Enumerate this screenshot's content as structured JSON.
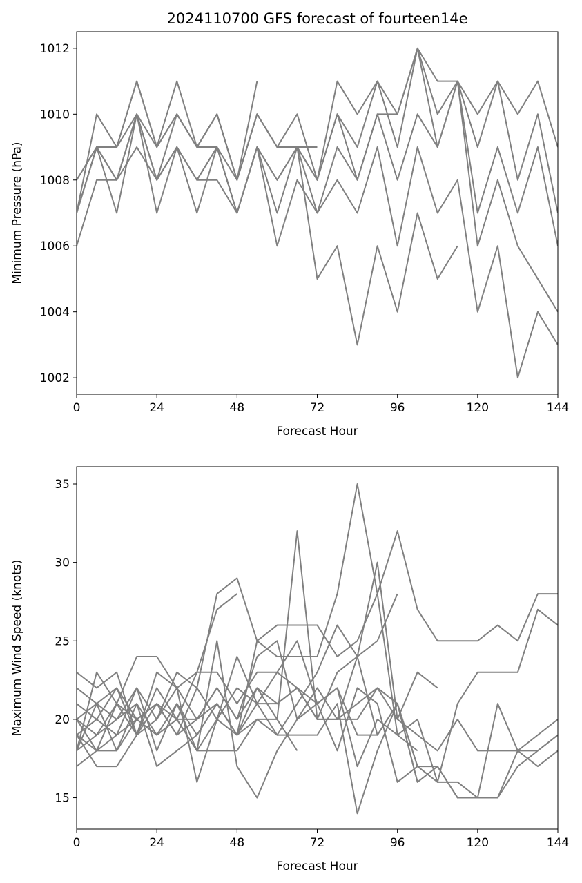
{
  "figure_title": "2024110700 GFS forecast of fourteen14e",
  "line_color": "#808080",
  "chart_data": [
    {
      "type": "line",
      "title": "2024110700 GFS forecast of fourteen14e",
      "xlabel": "Forecast Hour",
      "ylabel": "Minimum Pressure (hPa)",
      "xlim": [
        0,
        144
      ],
      "ylim": [
        1001.5,
        1012.5
      ],
      "xticks": [
        0,
        24,
        48,
        72,
        96,
        120,
        144
      ],
      "yticks": [
        1002,
        1004,
        1006,
        1008,
        1010,
        1012
      ],
      "grid": false,
      "legend": "none",
      "series": [
        {
          "x": [
            0,
            6,
            12,
            18,
            24,
            30,
            36,
            42,
            48,
            54,
            60,
            66,
            72,
            78,
            84,
            90,
            96,
            102,
            108,
            114,
            120,
            126,
            132,
            138,
            144
          ],
          "values": [
            1007,
            1009,
            1009,
            1011,
            1009,
            1011,
            1009,
            1009,
            1008,
            1010,
            1009,
            1009,
            1008,
            1011,
            1010,
            1011,
            1010,
            1012,
            1011,
            1011,
            1010,
            1011,
            1010,
            1011,
            1009
          ]
        },
        {
          "x": [
            0,
            6,
            12,
            18,
            24,
            30,
            36,
            42,
            48,
            54,
            60,
            66,
            72,
            78,
            84,
            90,
            96,
            102,
            108,
            114,
            120,
            126,
            132,
            138,
            144
          ],
          "values": [
            1008,
            1009,
            1009,
            1010,
            1008,
            1010,
            1009,
            1010,
            1008,
            1010,
            1009,
            1010,
            1008,
            1010,
            1009,
            1011,
            1009,
            1012,
            1010,
            1011,
            1009,
            1011,
            1008,
            1010,
            1007
          ]
        },
        {
          "x": [
            0,
            6,
            12,
            18,
            24,
            30,
            36,
            42,
            48,
            54,
            60,
            66,
            72,
            78,
            84,
            90,
            96,
            102,
            108,
            114,
            120,
            126,
            132,
            138,
            144
          ],
          "values": [
            1007,
            1009,
            1008,
            1010,
            1008,
            1009,
            1008,
            1009,
            1007,
            1009,
            1008,
            1009,
            1008,
            1010,
            1008,
            1010,
            1010,
            1012,
            1009,
            1011,
            1007,
            1009,
            1007,
            1009,
            1006
          ]
        },
        {
          "x": [
            0,
            6,
            12,
            18,
            24,
            30,
            36,
            42,
            48,
            54,
            60,
            66,
            72,
            78,
            84,
            90,
            96,
            102,
            108,
            114,
            120,
            126,
            132,
            138,
            144
          ],
          "values": [
            1007,
            1009,
            1008,
            1010,
            1008,
            1009,
            1008,
            1009,
            1007,
            1009,
            1008,
            1009,
            1007,
            1009,
            1008,
            1010,
            1008,
            1010,
            1009,
            1011,
            1006,
            1008,
            1006,
            1005,
            1004
          ]
        },
        {
          "x": [
            0,
            6,
            12,
            18,
            24,
            30,
            36,
            42,
            48,
            54,
            60,
            66,
            72,
            78,
            84,
            90,
            96,
            102,
            108,
            114,
            120,
            126,
            132,
            138,
            144
          ],
          "values": [
            1007,
            1009,
            1007,
            1010,
            1007,
            1009,
            1007,
            1009,
            1007,
            1009,
            1006,
            1008,
            1007,
            1008,
            1007,
            1009,
            1006,
            1009,
            1007,
            1008,
            1004,
            1006,
            1002,
            1004,
            1003
          ]
        },
        {
          "x": [
            0,
            6,
            12,
            18,
            24,
            30,
            36,
            42,
            48,
            54,
            60,
            66,
            72,
            78,
            84,
            90,
            96,
            102,
            108,
            114
          ],
          "values": [
            1006,
            1008,
            1008,
            1009,
            1008,
            1009,
            1008,
            1008,
            1007,
            1009,
            1007,
            1009,
            1005,
            1006,
            1003,
            1006,
            1004,
            1007,
            1005,
            1006
          ]
        },
        {
          "x": [
            0,
            6,
            12,
            18,
            24,
            30,
            36,
            42,
            48,
            54
          ],
          "values": [
            1007,
            1010,
            1009,
            1011,
            1009,
            1010,
            1009,
            1010,
            1008,
            1011
          ]
        },
        {
          "x": [
            0,
            6,
            12,
            18,
            24,
            30,
            36,
            42,
            48,
            54,
            60,
            66,
            72
          ],
          "values": [
            1008,
            1009,
            1008,
            1010,
            1009,
            1010,
            1009,
            1010,
            1008,
            1010,
            1009,
            1009,
            1009
          ]
        }
      ]
    },
    {
      "type": "line",
      "title": "",
      "xlabel": "Forecast Hour",
      "ylabel": "Maximum Wind Speed (knots)",
      "xlim": [
        0,
        144
      ],
      "ylim": [
        13,
        36.1
      ],
      "xticks": [
        0,
        24,
        48,
        72,
        96,
        120,
        144
      ],
      "yticks": [
        15,
        20,
        25,
        30,
        35
      ],
      "grid": false,
      "legend": "none",
      "series": [
        {
          "x": [
            0,
            6,
            12,
            18,
            24,
            30,
            36,
            42,
            48,
            54,
            60,
            66,
            72,
            78,
            84,
            90,
            96,
            102,
            108,
            114,
            120,
            126,
            132,
            138,
            144
          ],
          "values": [
            18,
            19,
            20,
            22,
            20,
            23,
            22,
            28,
            29,
            25,
            24,
            24,
            24,
            28,
            35,
            28,
            32,
            27,
            25,
            25,
            25,
            26,
            25,
            28,
            28
          ]
        },
        {
          "x": [
            0,
            6,
            12,
            18,
            24,
            30,
            36,
            42,
            48,
            54,
            60,
            66,
            72,
            78,
            84,
            90,
            96,
            102,
            108,
            114,
            120,
            126,
            132,
            138,
            144
          ],
          "values": [
            19,
            18,
            21,
            19,
            21,
            19,
            22,
            20,
            22,
            21,
            23,
            25,
            21,
            22,
            19,
            19,
            21,
            17,
            17,
            15,
            15,
            15,
            18,
            17,
            18
          ]
        },
        {
          "x": [
            0,
            6,
            12,
            18,
            24,
            30,
            36,
            42,
            48,
            54,
            60,
            66,
            72,
            78,
            84,
            90,
            96,
            102,
            108,
            114,
            120,
            126,
            132,
            138,
            144
          ],
          "values": [
            20,
            21,
            22,
            19,
            22,
            20,
            23,
            23,
            21,
            23,
            23,
            22,
            21,
            22,
            17,
            20,
            19,
            20,
            16,
            21,
            23,
            23,
            23,
            27,
            26
          ]
        },
        {
          "x": [
            0,
            6,
            12,
            18,
            24,
            30,
            36,
            42,
            48,
            54,
            60,
            66,
            72,
            78,
            84,
            90,
            96,
            102,
            108,
            114,
            120,
            126,
            132,
            138,
            144
          ],
          "values": [
            21,
            20,
            22,
            20,
            21,
            19,
            20,
            22,
            20,
            24,
            25,
            20,
            22,
            20,
            20,
            22,
            20,
            19,
            18,
            20,
            18,
            18,
            18,
            19,
            20
          ]
        },
        {
          "x": [
            0,
            6,
            12,
            18,
            24,
            30,
            36,
            42,
            48,
            54,
            60,
            66,
            72,
            78,
            84,
            90,
            96,
            102,
            108,
            114,
            120,
            126,
            132,
            138,
            144
          ],
          "values": [
            22,
            21,
            20,
            21,
            19,
            21,
            19,
            21,
            19,
            22,
            21,
            22,
            20,
            20,
            21,
            22,
            21,
            16,
            17,
            15,
            15,
            21,
            18,
            18,
            19
          ]
        },
        {
          "x": [
            0,
            6,
            12,
            18,
            24,
            30,
            36,
            42,
            48,
            54,
            60,
            66,
            72,
            78,
            84,
            90,
            96,
            102,
            108,
            114,
            120,
            126,
            132,
            138,
            144
          ],
          "values": [
            20,
            18,
            19,
            22,
            18,
            21,
            18,
            18,
            18,
            20,
            19,
            19,
            19,
            21,
            14,
            18,
            21,
            17,
            16,
            16,
            15,
            15,
            17,
            18,
            19
          ]
        },
        {
          "x": [
            0,
            6,
            12,
            18,
            24,
            30,
            36,
            42,
            48,
            54,
            60,
            66,
            72,
            78,
            84,
            90,
            96,
            102,
            108
          ],
          "values": [
            23,
            22,
            23,
            19,
            23,
            22,
            20,
            22,
            20,
            22,
            20,
            32,
            20,
            20,
            24,
            30,
            20,
            23,
            22
          ]
        },
        {
          "x": [
            0,
            6,
            12,
            18,
            24,
            30,
            36,
            42,
            48,
            54,
            60,
            66,
            72,
            78,
            84,
            90,
            96,
            102
          ],
          "values": [
            17,
            18,
            18,
            21,
            17,
            18,
            19,
            21,
            19,
            25,
            26,
            26,
            26,
            24,
            25,
            28,
            19,
            18
          ]
        },
        {
          "x": [
            0,
            6,
            12,
            18,
            24,
            30,
            36,
            42,
            48,
            54,
            60,
            66,
            72,
            78,
            84,
            90,
            96,
            102
          ],
          "values": [
            19,
            20,
            19,
            20,
            19,
            20,
            18,
            20,
            19,
            21,
            19,
            21,
            23,
            26,
            24,
            19,
            21,
            16
          ]
        },
        {
          "x": [
            0,
            6,
            12,
            18,
            24,
            30,
            36,
            42,
            48,
            54,
            60,
            66,
            72,
            78,
            84,
            90,
            96,
            102
          ],
          "values": [
            18,
            21,
            18,
            20,
            19,
            20,
            18,
            25,
            17,
            15,
            18,
            20,
            21,
            18,
            22,
            21,
            16,
            17
          ]
        },
        {
          "x": [
            0,
            6,
            12,
            18,
            24,
            30,
            36,
            42,
            48,
            54,
            60,
            66,
            72,
            78,
            84,
            90,
            96
          ],
          "values": [
            18,
            23,
            21,
            24,
            24,
            22,
            16,
            20,
            24,
            21,
            21,
            22,
            20,
            23,
            24,
            25,
            28
          ]
        },
        {
          "x": [
            0,
            6,
            12,
            18,
            24,
            30,
            36,
            42,
            48
          ],
          "values": [
            19,
            17,
            17,
            19,
            20,
            22,
            23,
            27,
            28
          ]
        },
        {
          "x": [
            0,
            6,
            12,
            18,
            24,
            30,
            36,
            42,
            48,
            54,
            60,
            66
          ],
          "values": [
            20,
            19,
            21,
            20,
            21,
            20,
            20,
            21,
            19,
            20,
            20,
            18
          ]
        }
      ]
    }
  ]
}
